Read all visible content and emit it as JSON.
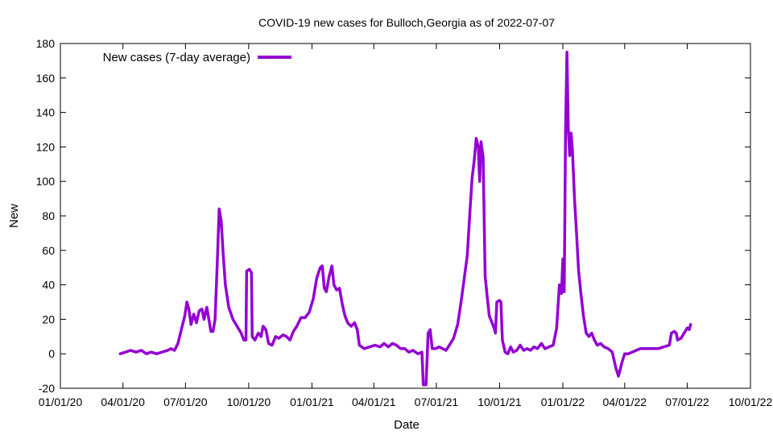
{
  "chart_data": {
    "type": "line",
    "title": "COVID-19 new cases for Bulloch,Georgia as of 2022-07-07",
    "xlabel": "Date",
    "ylabel": "New",
    "xlim": [
      "2020-01-01",
      "2022-10-01"
    ],
    "ylim": [
      -20,
      180
    ],
    "x_ticks": [
      "01/01/20",
      "04/01/20",
      "07/01/20",
      "10/01/20",
      "01/01/21",
      "04/01/21",
      "07/01/21",
      "10/01/21",
      "01/01/22",
      "04/01/22",
      "07/01/22",
      "10/01/22"
    ],
    "y_ticks": [
      -20,
      0,
      20,
      40,
      60,
      80,
      100,
      120,
      140,
      160,
      180
    ],
    "grid": false,
    "legend_position": "top-left",
    "colors": {
      "series": "#9400d3",
      "axes": "#000000"
    },
    "series": [
      {
        "name": "New cases (7-day average)",
        "points": [
          [
            "2020-03-28",
            0
          ],
          [
            "2020-04-05",
            1
          ],
          [
            "2020-04-12",
            2
          ],
          [
            "2020-04-20",
            1
          ],
          [
            "2020-04-28",
            2
          ],
          [
            "2020-05-05",
            0
          ],
          [
            "2020-05-12",
            1
          ],
          [
            "2020-05-20",
            0
          ],
          [
            "2020-05-28",
            1
          ],
          [
            "2020-06-05",
            2
          ],
          [
            "2020-06-10",
            3
          ],
          [
            "2020-06-15",
            2
          ],
          [
            "2020-06-20",
            6
          ],
          [
            "2020-06-25",
            14
          ],
          [
            "2020-06-30",
            22
          ],
          [
            "2020-07-03",
            30
          ],
          [
            "2020-07-06",
            26
          ],
          [
            "2020-07-09",
            17
          ],
          [
            "2020-07-13",
            23
          ],
          [
            "2020-07-17",
            18
          ],
          [
            "2020-07-21",
            25
          ],
          [
            "2020-07-25",
            26
          ],
          [
            "2020-07-28",
            20
          ],
          [
            "2020-08-01",
            27
          ],
          [
            "2020-08-04",
            20
          ],
          [
            "2020-08-07",
            13
          ],
          [
            "2020-08-10",
            13
          ],
          [
            "2020-08-13",
            20
          ],
          [
            "2020-08-16",
            50
          ],
          [
            "2020-08-19",
            84
          ],
          [
            "2020-08-22",
            77
          ],
          [
            "2020-08-25",
            57
          ],
          [
            "2020-08-28",
            40
          ],
          [
            "2020-09-02",
            27
          ],
          [
            "2020-09-08",
            20
          ],
          [
            "2020-09-14",
            16
          ],
          [
            "2020-09-20",
            12
          ],
          [
            "2020-09-24",
            8
          ],
          [
            "2020-09-27",
            8
          ],
          [
            "2020-09-28",
            48
          ],
          [
            "2020-10-02",
            49
          ],
          [
            "2020-10-05",
            47
          ],
          [
            "2020-10-06",
            10
          ],
          [
            "2020-10-10",
            8
          ],
          [
            "2020-10-15",
            12
          ],
          [
            "2020-10-19",
            10
          ],
          [
            "2020-10-22",
            16
          ],
          [
            "2020-10-26",
            14
          ],
          [
            "2020-10-30",
            6
          ],
          [
            "2020-11-04",
            5
          ],
          [
            "2020-11-09",
            10
          ],
          [
            "2020-11-14",
            9
          ],
          [
            "2020-11-20",
            11
          ],
          [
            "2020-11-25",
            10
          ],
          [
            "2020-11-30",
            8
          ],
          [
            "2020-12-05",
            13
          ],
          [
            "2020-12-10",
            16
          ],
          [
            "2020-12-16",
            21
          ],
          [
            "2020-12-22",
            21
          ],
          [
            "2020-12-28",
            24
          ],
          [
            "2021-01-03",
            32
          ],
          [
            "2021-01-08",
            44
          ],
          [
            "2021-01-13",
            50
          ],
          [
            "2021-01-16",
            51
          ],
          [
            "2021-01-19",
            38
          ],
          [
            "2021-01-22",
            36
          ],
          [
            "2021-01-26",
            45
          ],
          [
            "2021-01-30",
            51
          ],
          [
            "2021-02-02",
            40
          ],
          [
            "2021-02-06",
            37
          ],
          [
            "2021-02-10",
            38
          ],
          [
            "2021-02-14",
            29
          ],
          [
            "2021-02-18",
            22
          ],
          [
            "2021-02-22",
            18
          ],
          [
            "2021-02-27",
            16
          ],
          [
            "2021-03-04",
            18
          ],
          [
            "2021-03-08",
            14
          ],
          [
            "2021-03-11",
            5
          ],
          [
            "2021-03-18",
            3
          ],
          [
            "2021-03-26",
            4
          ],
          [
            "2021-04-03",
            5
          ],
          [
            "2021-04-10",
            4
          ],
          [
            "2021-04-16",
            6
          ],
          [
            "2021-04-22",
            4
          ],
          [
            "2021-04-28",
            6
          ],
          [
            "2021-05-04",
            5
          ],
          [
            "2021-05-10",
            3
          ],
          [
            "2021-05-16",
            3
          ],
          [
            "2021-05-22",
            1
          ],
          [
            "2021-05-28",
            2
          ],
          [
            "2021-06-04",
            0
          ],
          [
            "2021-06-10",
            1
          ],
          [
            "2021-06-12",
            -18
          ],
          [
            "2021-06-16",
            -18
          ],
          [
            "2021-06-19",
            12
          ],
          [
            "2021-06-22",
            14
          ],
          [
            "2021-06-25",
            3
          ],
          [
            "2021-06-30",
            3
          ],
          [
            "2021-07-05",
            4
          ],
          [
            "2021-07-10",
            3
          ],
          [
            "2021-07-15",
            2
          ],
          [
            "2021-07-20",
            5
          ],
          [
            "2021-07-26",
            9
          ],
          [
            "2021-08-01",
            17
          ],
          [
            "2021-08-06",
            30
          ],
          [
            "2021-08-11",
            45
          ],
          [
            "2021-08-15",
            57
          ],
          [
            "2021-08-19",
            83
          ],
          [
            "2021-08-22",
            102
          ],
          [
            "2021-08-25",
            112
          ],
          [
            "2021-08-28",
            125
          ],
          [
            "2021-08-31",
            120
          ],
          [
            "2021-09-02",
            100
          ],
          [
            "2021-09-04",
            123
          ],
          [
            "2021-09-07",
            114
          ],
          [
            "2021-09-10",
            45
          ],
          [
            "2021-09-13",
            33
          ],
          [
            "2021-09-16",
            22
          ],
          [
            "2021-09-20",
            18
          ],
          [
            "2021-09-23",
            15
          ],
          [
            "2021-09-25",
            12
          ],
          [
            "2021-09-27",
            30
          ],
          [
            "2021-10-01",
            31
          ],
          [
            "2021-10-03",
            30
          ],
          [
            "2021-10-05",
            8
          ],
          [
            "2021-10-09",
            1
          ],
          [
            "2021-10-13",
            0
          ],
          [
            "2021-10-17",
            4
          ],
          [
            "2021-10-21",
            1
          ],
          [
            "2021-10-26",
            2
          ],
          [
            "2021-10-31",
            5
          ],
          [
            "2021-11-05",
            2
          ],
          [
            "2021-11-10",
            3
          ],
          [
            "2021-11-15",
            2
          ],
          [
            "2021-11-20",
            4
          ],
          [
            "2021-11-25",
            3
          ],
          [
            "2021-12-01",
            6
          ],
          [
            "2021-12-06",
            3
          ],
          [
            "2021-12-12",
            4
          ],
          [
            "2021-12-18",
            5
          ],
          [
            "2021-12-23",
            15
          ],
          [
            "2021-12-27",
            40
          ],
          [
            "2021-12-30",
            35
          ],
          [
            "2022-01-01",
            55
          ],
          [
            "2022-01-03",
            36
          ],
          [
            "2022-01-05",
            130
          ],
          [
            "2022-01-07",
            175
          ],
          [
            "2022-01-09",
            130
          ],
          [
            "2022-01-11",
            115
          ],
          [
            "2022-01-13",
            128
          ],
          [
            "2022-01-15",
            118
          ],
          [
            "2022-01-18",
            90
          ],
          [
            "2022-01-21",
            70
          ],
          [
            "2022-01-24",
            48
          ],
          [
            "2022-01-27",
            36
          ],
          [
            "2022-01-31",
            22
          ],
          [
            "2022-02-04",
            12
          ],
          [
            "2022-02-08",
            10
          ],
          [
            "2022-02-12",
            12
          ],
          [
            "2022-02-16",
            8
          ],
          [
            "2022-02-20",
            5
          ],
          [
            "2022-02-25",
            6
          ],
          [
            "2022-03-02",
            4
          ],
          [
            "2022-03-08",
            3
          ],
          [
            "2022-03-14",
            1
          ],
          [
            "2022-03-19",
            -8
          ],
          [
            "2022-03-23",
            -13
          ],
          [
            "2022-03-28",
            -5
          ],
          [
            "2022-04-01",
            0
          ],
          [
            "2022-04-06",
            0
          ],
          [
            "2022-04-12",
            1
          ],
          [
            "2022-04-18",
            2
          ],
          [
            "2022-04-24",
            3
          ],
          [
            "2022-05-01",
            3
          ],
          [
            "2022-05-10",
            3
          ],
          [
            "2022-05-20",
            3
          ],
          [
            "2022-05-28",
            4
          ],
          [
            "2022-06-05",
            5
          ],
          [
            "2022-06-08",
            12
          ],
          [
            "2022-06-12",
            13
          ],
          [
            "2022-06-15",
            12
          ],
          [
            "2022-06-17",
            8
          ],
          [
            "2022-06-22",
            9
          ],
          [
            "2022-06-25",
            11
          ],
          [
            "2022-06-28",
            13
          ],
          [
            "2022-07-01",
            15
          ],
          [
            "2022-07-04",
            14
          ],
          [
            "2022-07-06",
            17
          ]
        ]
      }
    ]
  }
}
